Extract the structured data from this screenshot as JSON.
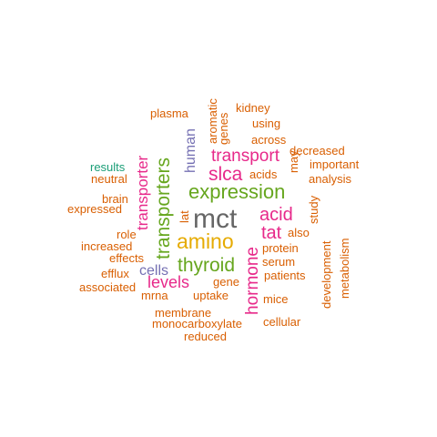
{
  "title": "word cloud",
  "colors": {
    "grey": "#666666",
    "orange": "#d95f02",
    "green": "#66a61e",
    "magenta": "#e7298a",
    "gold": "#e6ab02",
    "purple": "#7570b3",
    "teal": "#1b9e77"
  },
  "words": [
    {
      "text": "mct",
      "color": "grey"
    },
    {
      "text": "expression",
      "color": "green"
    },
    {
      "text": "amino",
      "color": "gold"
    },
    {
      "text": "transporters",
      "color": "green"
    },
    {
      "text": "thyroid",
      "color": "green"
    },
    {
      "text": "transport",
      "color": "magenta"
    },
    {
      "text": "slca",
      "color": "magenta"
    },
    {
      "text": "acid",
      "color": "magenta"
    },
    {
      "text": "tat",
      "color": "magenta"
    },
    {
      "text": "hormone",
      "color": "magenta"
    },
    {
      "text": "transporter",
      "color": "magenta"
    },
    {
      "text": "levels",
      "color": "magenta"
    },
    {
      "text": "human",
      "color": "purple"
    },
    {
      "text": "cells",
      "color": "purple"
    },
    {
      "text": "results",
      "color": "teal"
    },
    {
      "text": "plasma",
      "color": "orange"
    },
    {
      "text": "aromatic",
      "color": "orange"
    },
    {
      "text": "genes",
      "color": "orange"
    },
    {
      "text": "kidney",
      "color": "orange"
    },
    {
      "text": "using",
      "color": "orange"
    },
    {
      "text": "across",
      "color": "orange"
    },
    {
      "text": "may",
      "color": "orange"
    },
    {
      "text": "decreased",
      "color": "orange"
    },
    {
      "text": "important",
      "color": "orange"
    },
    {
      "text": "analysis",
      "color": "orange"
    },
    {
      "text": "acids",
      "color": "orange"
    },
    {
      "text": "neutral",
      "color": "orange"
    },
    {
      "text": "brain",
      "color": "orange"
    },
    {
      "text": "expressed",
      "color": "orange"
    },
    {
      "text": "lat",
      "color": "orange"
    },
    {
      "text": "study",
      "color": "orange"
    },
    {
      "text": "also",
      "color": "orange"
    },
    {
      "text": "role",
      "color": "orange"
    },
    {
      "text": "increased",
      "color": "orange"
    },
    {
      "text": "effects",
      "color": "orange"
    },
    {
      "text": "protein",
      "color": "orange"
    },
    {
      "text": "serum",
      "color": "orange"
    },
    {
      "text": "efflux",
      "color": "orange"
    },
    {
      "text": "gene",
      "color": "orange"
    },
    {
      "text": "patients",
      "color": "orange"
    },
    {
      "text": "associated",
      "color": "orange"
    },
    {
      "text": "mrna",
      "color": "orange"
    },
    {
      "text": "uptake",
      "color": "orange"
    },
    {
      "text": "mice",
      "color": "orange"
    },
    {
      "text": "development",
      "color": "orange"
    },
    {
      "text": "metabolism",
      "color": "orange"
    },
    {
      "text": "membrane",
      "color": "orange"
    },
    {
      "text": "monocarboxylate",
      "color": "orange"
    },
    {
      "text": "cellular",
      "color": "orange"
    },
    {
      "text": "reduced",
      "color": "orange"
    }
  ]
}
